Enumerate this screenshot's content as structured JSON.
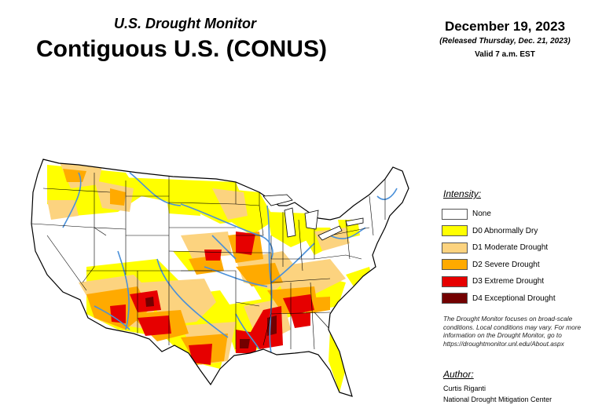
{
  "header": {
    "subtitle": "U.S. Drought Monitor",
    "title": "Contiguous U.S. (CONUS)",
    "date": "December 19, 2023",
    "released": "(Released Thursday, Dec. 21, 2023)",
    "valid": "Valid 7 a.m. EST"
  },
  "legend": {
    "title": "Intensity:",
    "items": [
      {
        "label": "None",
        "color": "#ffffff"
      },
      {
        "label": "D0 Abnormally Dry",
        "color": "#ffff00"
      },
      {
        "label": "D1 Moderate Drought",
        "color": "#fcd37f"
      },
      {
        "label": "D2 Severe Drought",
        "color": "#ffaa00"
      },
      {
        "label": "D3 Extreme Drought",
        "color": "#e60000"
      },
      {
        "label": "D4 Exceptional Drought",
        "color": "#730000"
      }
    ]
  },
  "note": "The Drought Monitor focuses on broad-scale conditions. Local conditions may vary. For more information on the Drought Monitor, go to https://droughtmonitor.unl.edu/About.aspx",
  "author": {
    "title": "Author:",
    "name": "Curtis Riganti",
    "org": "National Drought Mitigation Center"
  },
  "map_colors": {
    "water": "#4a90d9",
    "border": "#000000"
  }
}
